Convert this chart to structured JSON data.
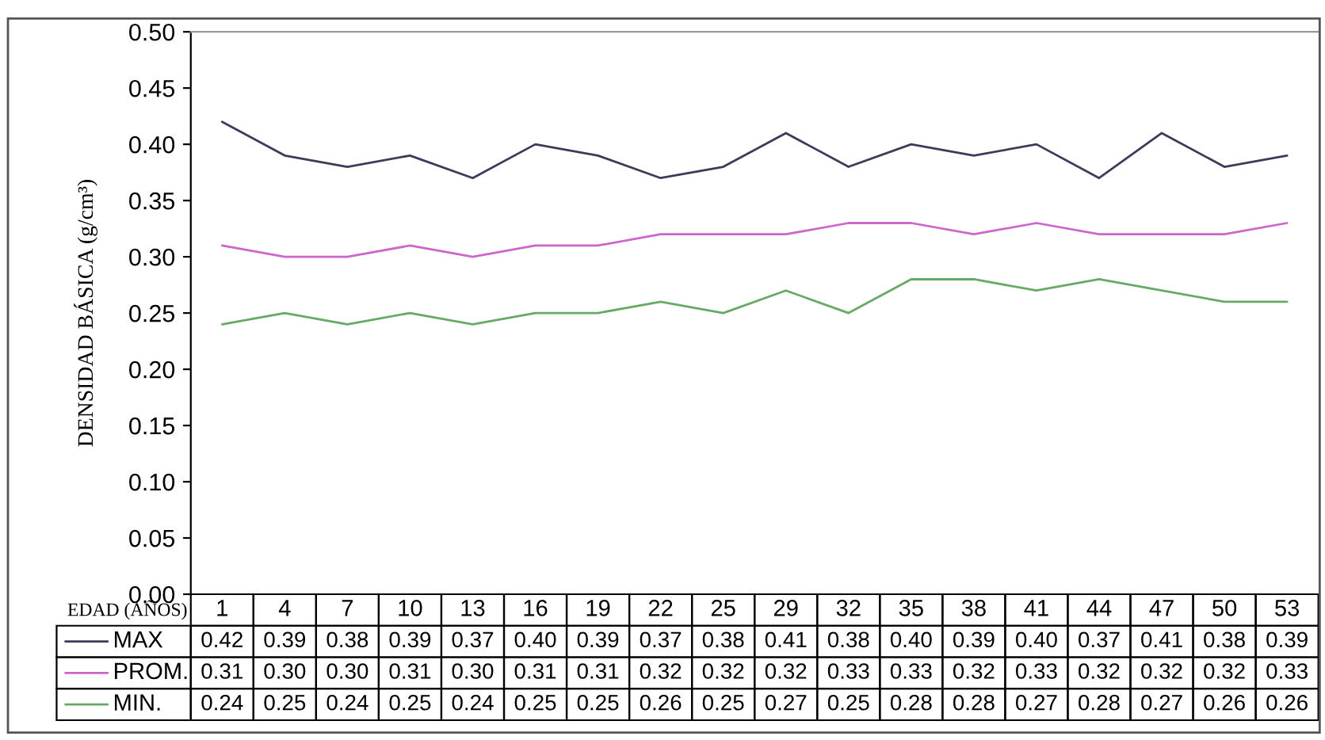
{
  "chart_data": {
    "type": "line",
    "ylabel": "DENSIDAD BÁSICA (g/cm³)",
    "xlabel": "EDAD (AÑOS)",
    "categories": [
      "1",
      "4",
      "7",
      "10",
      "13",
      "16",
      "19",
      "22",
      "25",
      "29",
      "32",
      "35",
      "38",
      "41",
      "44",
      "47",
      "50",
      "53"
    ],
    "series": [
      {
        "name": "MAX",
        "color": "#3c3c5a",
        "values": [
          0.42,
          0.39,
          0.38,
          0.39,
          0.37,
          0.4,
          0.39,
          0.37,
          0.38,
          0.41,
          0.38,
          0.4,
          0.39,
          0.4,
          0.37,
          0.41,
          0.38,
          0.39
        ],
        "value_labels": [
          "0.42",
          "0.39",
          "0.38",
          "0.39",
          "0.37",
          "0.40",
          "0.39",
          "0.37",
          "0.38",
          "0.41",
          "0.38",
          "0.40",
          "0.39",
          "0.40",
          "0.37",
          "0.41",
          "0.38",
          "0.39"
        ]
      },
      {
        "name": "PROM.",
        "color": "#cc66cc",
        "values": [
          0.31,
          0.3,
          0.3,
          0.31,
          0.3,
          0.31,
          0.31,
          0.32,
          0.32,
          0.32,
          0.33,
          0.33,
          0.32,
          0.33,
          0.32,
          0.32,
          0.32,
          0.33
        ],
        "value_labels": [
          "0.31",
          "0.30",
          "0.30",
          "0.31",
          "0.30",
          "0.31",
          "0.31",
          "0.32",
          "0.32",
          "0.32",
          "0.33",
          "0.33",
          "0.32",
          "0.33",
          "0.32",
          "0.32",
          "0.32",
          "0.33"
        ]
      },
      {
        "name": "MIN.",
        "color": "#66aa66",
        "values": [
          0.24,
          0.25,
          0.24,
          0.25,
          0.24,
          0.25,
          0.25,
          0.26,
          0.25,
          0.27,
          0.25,
          0.28,
          0.28,
          0.27,
          0.28,
          0.27,
          0.26,
          0.26
        ],
        "value_labels": [
          "0.24",
          "0.25",
          "0.24",
          "0.25",
          "0.24",
          "0.25",
          "0.25",
          "0.26",
          "0.25",
          "0.27",
          "0.25",
          "0.28",
          "0.28",
          "0.27",
          "0.28",
          "0.27",
          "0.26",
          "0.26"
        ]
      }
    ],
    "ylim": [
      0,
      0.5
    ],
    "yticks": [
      {
        "value": 0,
        "label": "0.00"
      },
      {
        "value": 0.05,
        "label": "0.05"
      },
      {
        "value": 0.1,
        "label": "0.10"
      },
      {
        "value": 0.15,
        "label": "0.15"
      },
      {
        "value": 0.2,
        "label": "0.20"
      },
      {
        "value": 0.25,
        "label": "0.25"
      },
      {
        "value": 0.3,
        "label": "0.30"
      },
      {
        "value": 0.35,
        "label": "0.35"
      },
      {
        "value": 0.4,
        "label": "0.40"
      },
      {
        "value": 0.45,
        "label": "0.45"
      },
      {
        "value": 0.5,
        "label": "0.50"
      }
    ],
    "legend": "bottom left"
  }
}
